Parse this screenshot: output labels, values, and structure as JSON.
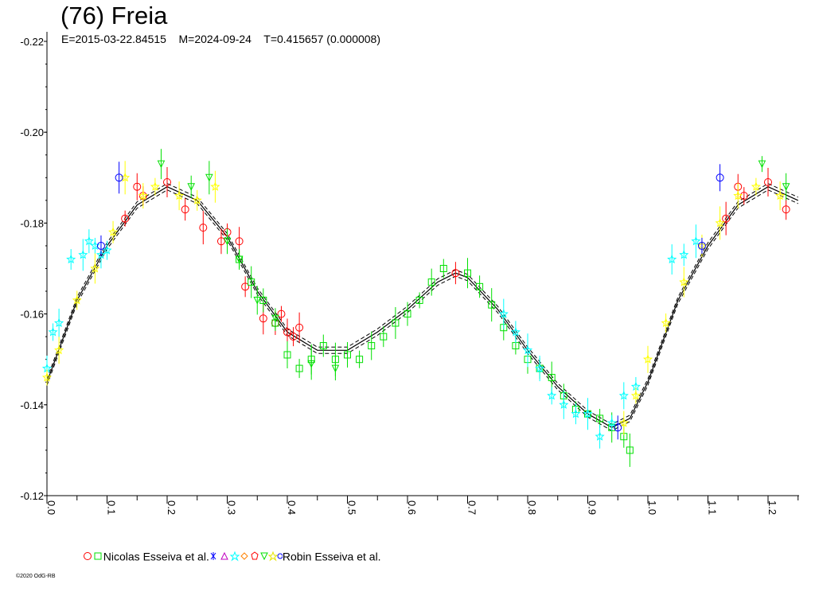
{
  "title": "(76) Freia",
  "header": {
    "epoch": "E=2015-03-22.84515",
    "modified": "M=2024-09-24",
    "period": "T=0.415657 (0.000008)"
  },
  "legend": {
    "group1_label": "Nicolas Esseiva et al.",
    "group2_label": "Robin Esseiva et al."
  },
  "copyright": "©2020 OdG-RB",
  "colors": {
    "red": "#ff0000",
    "green": "#00e000",
    "cyan": "#00ffff",
    "yellow": "#ffff00",
    "blue": "#0000ff",
    "magenta": "#c000c0",
    "orange": "#ff8000"
  },
  "chart_data": {
    "type": "scatter",
    "xlabel": "",
    "ylabel": "",
    "xlim": [
      0,
      1.25
    ],
    "ylim": [
      -0.22,
      -0.12
    ],
    "y_inverted": true,
    "x_ticks": [
      "0.0",
      "0.1",
      "0.2",
      "0.3",
      "0.4",
      "0.5",
      "0.6",
      "0.7",
      "0.8",
      "0.9",
      "1.0",
      "1.1",
      "1.2"
    ],
    "y_ticks": [
      "-0.22",
      "-0.20",
      "-0.18",
      "-0.16",
      "-0.14",
      "-0.12"
    ],
    "fit_curve": {
      "x": [
        0.0,
        0.05,
        0.1,
        0.15,
        0.2,
        0.25,
        0.3,
        0.35,
        0.4,
        0.45,
        0.5,
        0.55,
        0.6,
        0.65,
        0.68,
        0.7,
        0.75,
        0.8,
        0.85,
        0.9,
        0.94,
        0.97,
        1.0,
        1.05,
        1.1,
        1.15,
        1.2,
        1.25
      ],
      "y": [
        -0.145,
        -0.163,
        -0.175,
        -0.184,
        -0.188,
        -0.185,
        -0.177,
        -0.165,
        -0.156,
        -0.152,
        -0.152,
        -0.156,
        -0.161,
        -0.167,
        -0.169,
        -0.168,
        -0.161,
        -0.152,
        -0.144,
        -0.138,
        -0.135,
        -0.137,
        -0.145,
        -0.163,
        -0.175,
        -0.184,
        -0.188,
        -0.185
      ]
    },
    "series": [
      {
        "name": "Nicolas Esseiva et al.",
        "marker": "circle",
        "color": "red",
        "x": [
          0.13,
          0.15,
          0.16,
          0.2,
          0.23,
          0.26,
          0.29,
          0.3,
          0.32,
          0.33,
          0.36,
          0.38,
          0.39,
          0.4,
          0.41,
          0.42,
          0.68,
          1.13,
          1.15,
          1.16,
          1.2,
          1.23
        ],
        "y": [
          -0.181,
          -0.188,
          -0.186,
          -0.189,
          -0.183,
          -0.179,
          -0.176,
          -0.178,
          -0.176,
          -0.166,
          -0.159,
          -0.158,
          -0.16,
          -0.156,
          -0.155,
          -0.157,
          -0.169,
          -0.181,
          -0.188,
          -0.186,
          -0.189,
          -0.183
        ]
      },
      {
        "name": "Nicolas Esseiva et al.",
        "marker": "square",
        "color": "green",
        "x": [
          0.32,
          0.34,
          0.36,
          0.38,
          0.4,
          0.42,
          0.44,
          0.46,
          0.48,
          0.5,
          0.52,
          0.54,
          0.56,
          0.58,
          0.6,
          0.62,
          0.64,
          0.66,
          0.7,
          0.72,
          0.74,
          0.76,
          0.78,
          0.8,
          0.82,
          0.84,
          0.86,
          0.88,
          0.9,
          0.92,
          0.94,
          0.96,
          0.97
        ],
        "y": [
          -0.172,
          -0.167,
          -0.163,
          -0.158,
          -0.151,
          -0.148,
          -0.15,
          -0.153,
          -0.15,
          -0.151,
          -0.15,
          -0.153,
          -0.155,
          -0.158,
          -0.16,
          -0.163,
          -0.167,
          -0.17,
          -0.169,
          -0.166,
          -0.162,
          -0.157,
          -0.153,
          -0.15,
          -0.148,
          -0.146,
          -0.142,
          -0.139,
          -0.138,
          -0.137,
          -0.135,
          -0.133,
          -0.13
        ]
      },
      {
        "name": "",
        "marker": "star",
        "color": "cyan",
        "x": [
          0.0,
          0.01,
          0.02,
          0.04,
          0.06,
          0.07,
          0.08,
          0.09,
          0.1,
          0.76,
          0.78,
          0.8,
          0.82,
          0.84,
          0.86,
          0.88,
          0.9,
          0.92,
          0.94,
          0.96,
          0.98,
          1.04,
          1.06,
          1.08
        ],
        "y": [
          -0.148,
          -0.156,
          -0.158,
          -0.172,
          -0.173,
          -0.176,
          -0.175,
          -0.173,
          -0.174,
          -0.16,
          -0.156,
          -0.152,
          -0.148,
          -0.142,
          -0.14,
          -0.138,
          -0.138,
          -0.133,
          -0.136,
          -0.142,
          -0.144,
          -0.172,
          -0.173,
          -0.176
        ]
      },
      {
        "name": "",
        "marker": "triangle-down",
        "color": "green",
        "x": [
          0.19,
          0.24,
          0.27,
          0.3,
          0.32,
          0.35,
          0.38,
          0.44,
          0.48,
          1.19,
          1.23
        ],
        "y": [
          -0.193,
          -0.188,
          -0.19,
          -0.176,
          -0.172,
          -0.163,
          -0.159,
          -0.149,
          -0.148,
          -0.193,
          -0.188
        ]
      },
      {
        "name": "",
        "marker": "star",
        "color": "yellow",
        "x": [
          0.0,
          0.02,
          0.05,
          0.08,
          0.11,
          0.13,
          0.16,
          0.18,
          0.22,
          0.25,
          0.28,
          0.96,
          0.98,
          1.0,
          1.03,
          1.06,
          1.09,
          1.12,
          1.15,
          1.18,
          1.22
        ],
        "y": [
          -0.146,
          -0.152,
          -0.163,
          -0.17,
          -0.178,
          -0.19,
          -0.186,
          -0.188,
          -0.186,
          -0.185,
          -0.188,
          -0.136,
          -0.142,
          -0.15,
          -0.158,
          -0.167,
          -0.175,
          -0.18,
          -0.186,
          -0.188,
          -0.186
        ]
      },
      {
        "name": "Robin Esseiva et al.",
        "marker": "circle",
        "color": "blue",
        "x": [
          0.09,
          0.12,
          0.95,
          1.09,
          1.12
        ],
        "y": [
          -0.175,
          -0.19,
          -0.135,
          -0.175,
          -0.19
        ]
      }
    ]
  }
}
